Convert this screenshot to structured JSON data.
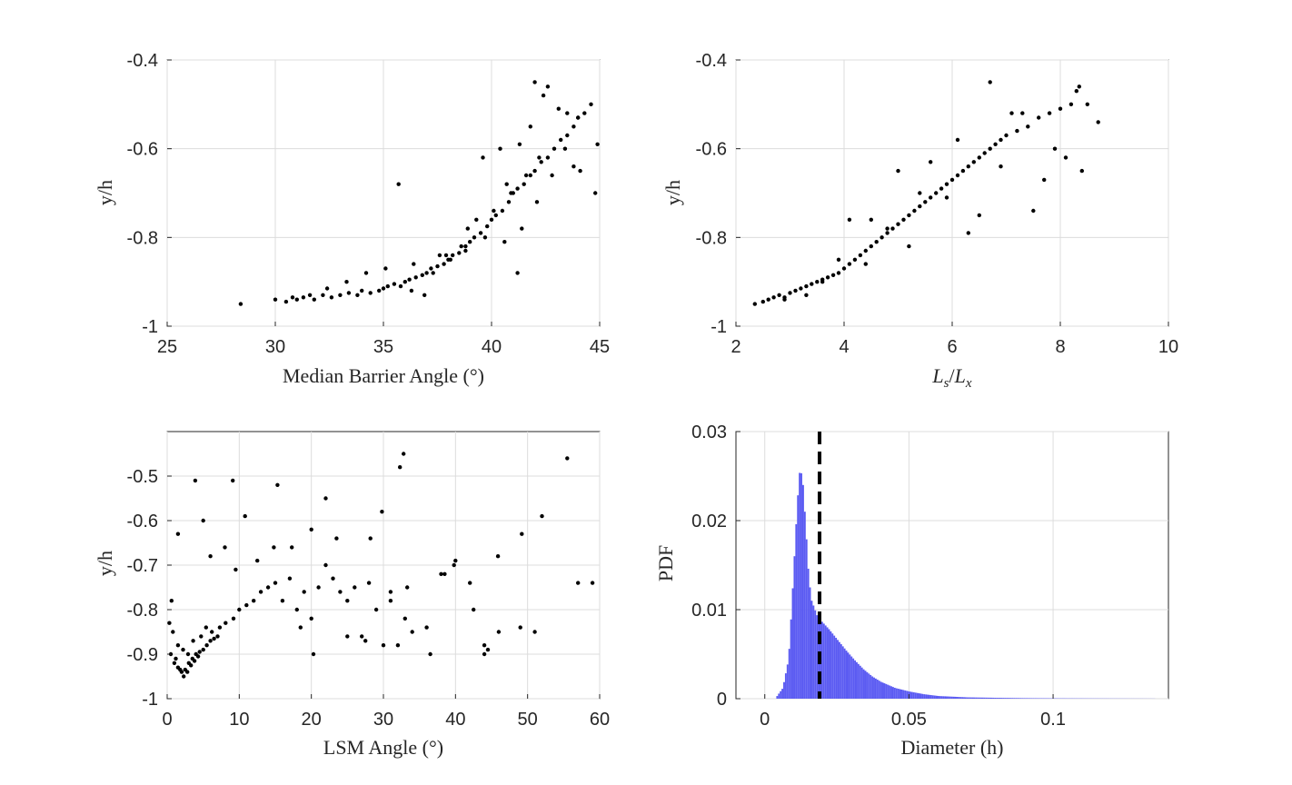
{
  "chart_data": [
    {
      "type": "scatter",
      "id": "p1",
      "xlabel": "Median Barrier Angle (°)",
      "ylabel": "y/h",
      "xlim": [
        25,
        45
      ],
      "ylim": [
        -1,
        -0.4
      ],
      "xticks": [
        25,
        30,
        35,
        40,
        45
      ],
      "yticks": [
        -1,
        -0.8,
        -0.6,
        -0.4
      ],
      "grid": true,
      "series": [
        {
          "name": "points",
          "x": [
            28.4,
            30.0,
            30.5,
            31.0,
            31.3,
            31.8,
            32.2,
            32.6,
            33.0,
            33.4,
            33.8,
            34.0,
            34.4,
            34.8,
            35.0,
            35.2,
            35.5,
            35.8,
            36.0,
            36.2,
            36.5,
            36.8,
            37.0,
            37.2,
            37.5,
            37.8,
            38.0,
            38.2,
            38.5,
            38.8,
            39.0,
            39.2,
            39.5,
            39.8,
            40.0,
            40.2,
            40.5,
            40.8,
            41.0,
            41.2,
            41.5,
            41.8,
            42.0,
            42.3,
            42.6,
            42.9,
            43.2,
            43.5,
            43.8,
            44.0,
            44.3,
            44.6,
            44.9,
            39.6,
            40.4,
            41.3,
            41.8,
            42.0,
            42.6,
            43.1,
            43.5,
            44.0,
            42.4,
            43.8,
            40.7,
            38.9,
            37.6,
            36.4,
            35.1,
            34.2,
            33.3,
            32.4,
            31.6,
            30.8,
            36.9,
            37.9,
            38.6,
            39.3,
            40.1,
            40.9,
            41.6,
            42.2,
            42.8,
            43.4,
            44.1,
            44.8,
            35.7,
            36.3,
            37.3,
            38.1,
            38.8,
            39.7,
            40.6,
            41.4,
            42.1,
            41.2
          ],
          "y": [
            -0.95,
            -0.94,
            -0.945,
            -0.94,
            -0.935,
            -0.94,
            -0.93,
            -0.935,
            -0.93,
            -0.925,
            -0.93,
            -0.92,
            -0.925,
            -0.92,
            -0.915,
            -0.91,
            -0.905,
            -0.91,
            -0.9,
            -0.895,
            -0.89,
            -0.885,
            -0.88,
            -0.87,
            -0.865,
            -0.86,
            -0.85,
            -0.84,
            -0.835,
            -0.82,
            -0.81,
            -0.8,
            -0.79,
            -0.775,
            -0.76,
            -0.75,
            -0.74,
            -0.72,
            -0.7,
            -0.69,
            -0.68,
            -0.66,
            -0.65,
            -0.63,
            -0.62,
            -0.6,
            -0.58,
            -0.57,
            -0.55,
            -0.53,
            -0.52,
            -0.5,
            -0.59,
            -0.62,
            -0.6,
            -0.59,
            -0.55,
            -0.45,
            -0.46,
            -0.51,
            -0.52,
            -0.53,
            -0.48,
            -0.64,
            -0.68,
            -0.78,
            -0.84,
            -0.86,
            -0.87,
            -0.88,
            -0.9,
            -0.915,
            -0.93,
            -0.935,
            -0.93,
            -0.84,
            -0.82,
            -0.76,
            -0.74,
            -0.7,
            -0.66,
            -0.62,
            -0.66,
            -0.6,
            -0.65,
            -0.7,
            -0.68,
            -0.92,
            -0.88,
            -0.85,
            -0.83,
            -0.8,
            -0.81,
            -0.78,
            -0.72,
            -0.88
          ]
        }
      ]
    },
    {
      "type": "scatter",
      "id": "p2",
      "xlabel": "Ls/Lx",
      "ylabel": "y/h",
      "xlim": [
        2,
        10
      ],
      "ylim": [
        -1,
        -0.4
      ],
      "xticks": [
        2,
        4,
        6,
        8,
        10
      ],
      "yticks": [
        -1,
        -0.8,
        -0.6,
        -0.4
      ],
      "grid": true,
      "series": [
        {
          "name": "points",
          "x": [
            2.35,
            2.5,
            2.6,
            2.7,
            2.8,
            2.9,
            3.0,
            3.1,
            3.2,
            3.3,
            3.4,
            3.5,
            3.6,
            3.7,
            3.8,
            3.9,
            4.0,
            4.1,
            4.2,
            4.3,
            4.4,
            4.5,
            4.6,
            4.7,
            4.8,
            4.9,
            5.0,
            5.1,
            5.2,
            5.3,
            5.4,
            5.5,
            5.6,
            5.7,
            5.8,
            5.9,
            6.0,
            6.1,
            6.2,
            6.3,
            6.4,
            6.5,
            6.6,
            6.7,
            6.8,
            6.9,
            7.0,
            7.2,
            7.4,
            7.6,
            7.8,
            8.0,
            8.2,
            8.35,
            8.5,
            8.7,
            8.4,
            7.9,
            7.1,
            6.7,
            5.6,
            4.1,
            4.5,
            5.0,
            5.4,
            6.1,
            6.5,
            7.3,
            7.5,
            8.1,
            8.3,
            3.3,
            3.9,
            4.8,
            5.9,
            6.9,
            7.7,
            2.9,
            3.6,
            4.4,
            5.2,
            6.3
          ],
          "y": [
            -0.95,
            -0.945,
            -0.94,
            -0.935,
            -0.93,
            -0.935,
            -0.925,
            -0.92,
            -0.915,
            -0.91,
            -0.905,
            -0.9,
            -0.895,
            -0.89,
            -0.885,
            -0.88,
            -0.87,
            -0.86,
            -0.85,
            -0.84,
            -0.83,
            -0.82,
            -0.81,
            -0.8,
            -0.79,
            -0.78,
            -0.77,
            -0.76,
            -0.75,
            -0.74,
            -0.73,
            -0.72,
            -0.71,
            -0.7,
            -0.69,
            -0.68,
            -0.67,
            -0.66,
            -0.65,
            -0.64,
            -0.63,
            -0.62,
            -0.61,
            -0.6,
            -0.59,
            -0.58,
            -0.57,
            -0.56,
            -0.55,
            -0.53,
            -0.52,
            -0.51,
            -0.5,
            -0.46,
            -0.5,
            -0.54,
            -0.65,
            -0.6,
            -0.52,
            -0.45,
            -0.63,
            -0.76,
            -0.76,
            -0.65,
            -0.7,
            -0.58,
            -0.75,
            -0.52,
            -0.74,
            -0.62,
            -0.47,
            -0.93,
            -0.85,
            -0.78,
            -0.71,
            -0.64,
            -0.67,
            -0.94,
            -0.9,
            -0.86,
            -0.82,
            -0.79
          ]
        }
      ]
    },
    {
      "type": "scatter",
      "id": "p3",
      "xlabel": "LSM Angle (°)",
      "ylabel": "y/h",
      "xlim": [
        0,
        60
      ],
      "ylim": [
        -1,
        -0.4
      ],
      "xticks": [
        0,
        10,
        20,
        30,
        40,
        50,
        60
      ],
      "yticks": [
        -1,
        -0.9,
        -0.8,
        -0.7,
        -0.6,
        -0.5
      ],
      "grid": true,
      "series": [
        {
          "name": "points",
          "x": [
            0.5,
            1.0,
            1.5,
            2.0,
            2.5,
            3.0,
            3.5,
            4.0,
            4.5,
            5.0,
            5.5,
            6.0,
            6.5,
            7.0,
            1.2,
            1.8,
            2.3,
            2.8,
            3.3,
            3.8,
            4.3,
            0.8,
            1.5,
            2.2,
            2.9,
            3.6,
            4.7,
            5.4,
            6.2,
            7.3,
            8.1,
            9.2,
            10.0,
            11.0,
            12.0,
            13.0,
            14.0,
            15.0,
            16.0,
            17.0,
            18.0,
            19.0,
            20.0,
            21.0,
            22.0,
            23.0,
            24.0,
            25.0,
            26.0,
            27.0,
            28.0,
            29.0,
            30.0,
            31.0,
            32.0,
            33.0,
            34.0,
            36.5,
            38.5,
            40.0,
            42.0,
            44.0,
            46.0,
            49.0,
            51.0,
            52.0,
            55.5,
            57.0,
            59.0,
            3.9,
            9.1,
            15.3,
            22.0,
            29.8,
            32.8,
            32.3,
            1.5,
            5.0,
            6.0,
            10.8,
            17.3,
            20.0,
            23.5,
            28.2,
            33.3,
            39.8,
            45.9,
            49.2,
            42.5,
            44.0,
            8.0,
            12.5,
            18.5,
            25.0,
            31.0,
            38.0,
            0.3,
            0.6,
            9.5,
            14.8,
            20.3,
            27.5,
            36.0,
            44.5
          ],
          "y": [
            -0.9,
            -0.92,
            -0.93,
            -0.94,
            -0.935,
            -0.92,
            -0.91,
            -0.9,
            -0.895,
            -0.89,
            -0.88,
            -0.87,
            -0.865,
            -0.86,
            -0.91,
            -0.935,
            -0.95,
            -0.94,
            -0.925,
            -0.915,
            -0.905,
            -0.85,
            -0.88,
            -0.89,
            -0.9,
            -0.87,
            -0.86,
            -0.84,
            -0.85,
            -0.84,
            -0.83,
            -0.82,
            -0.8,
            -0.79,
            -0.78,
            -0.76,
            -0.75,
            -0.74,
            -0.78,
            -0.73,
            -0.8,
            -0.76,
            -0.82,
            -0.75,
            -0.7,
            -0.73,
            -0.76,
            -0.78,
            -0.75,
            -0.86,
            -0.74,
            -0.8,
            -0.88,
            -0.76,
            -0.88,
            -0.82,
            -0.85,
            -0.9,
            -0.72,
            -0.69,
            -0.74,
            -0.88,
            -0.85,
            -0.84,
            -0.85,
            -0.59,
            -0.46,
            -0.74,
            -0.74,
            -0.51,
            -0.51,
            -0.52,
            -0.55,
            -0.58,
            -0.45,
            -0.48,
            -0.63,
            -0.6,
            -0.68,
            -0.59,
            -0.66,
            -0.62,
            -0.64,
            -0.64,
            -0.75,
            -0.7,
            -0.68,
            -0.63,
            -0.8,
            -0.9,
            -0.66,
            -0.69,
            -0.84,
            -0.86,
            -0.78,
            -0.72,
            -0.83,
            -0.78,
            -0.71,
            -0.66,
            -0.9,
            -0.87,
            -0.84,
            -0.89
          ]
        }
      ]
    },
    {
      "type": "histogram",
      "id": "p4",
      "xlabel": "Diameter (h)",
      "ylabel": "PDF",
      "xlim": [
        -0.01,
        0.14
      ],
      "ylim": [
        0,
        0.03
      ],
      "xticks": [
        0,
        0.05,
        0.1
      ],
      "xtick_labels": [
        "0",
        "0.05",
        "0.1"
      ],
      "yticks": [
        0,
        0.01,
        0.02,
        0.03
      ],
      "ytick_labels": [
        "0",
        "0.01",
        "0.02",
        "0.03"
      ],
      "grid": true,
      "bar_color": "#5b5bf2",
      "dashed_line_x": 0.019,
      "dashed_line_color": "#000000",
      "x": [
        0.004,
        0.006,
        0.008,
        0.009,
        0.01,
        0.011,
        0.012,
        0.013,
        0.014,
        0.015,
        0.016,
        0.018,
        0.02,
        0.022,
        0.025,
        0.028,
        0.031,
        0.034,
        0.037,
        0.04,
        0.045,
        0.05,
        0.055,
        0.06,
        0.07,
        0.08,
        0.09,
        0.1,
        0.11,
        0.12,
        0.135
      ],
      "values": [
        0.0003,
        0.0012,
        0.0045,
        0.01,
        0.016,
        0.022,
        0.0262,
        0.024,
        0.019,
        0.0135,
        0.011,
        0.0092,
        0.0085,
        0.0078,
        0.0066,
        0.0054,
        0.0043,
        0.0033,
        0.0025,
        0.0019,
        0.0012,
        0.0008,
        0.0005,
        0.0003,
        0.00015,
        0.0001,
        6e-05,
        4e-05,
        3e-05,
        2e-05,
        1e-05
      ]
    }
  ]
}
